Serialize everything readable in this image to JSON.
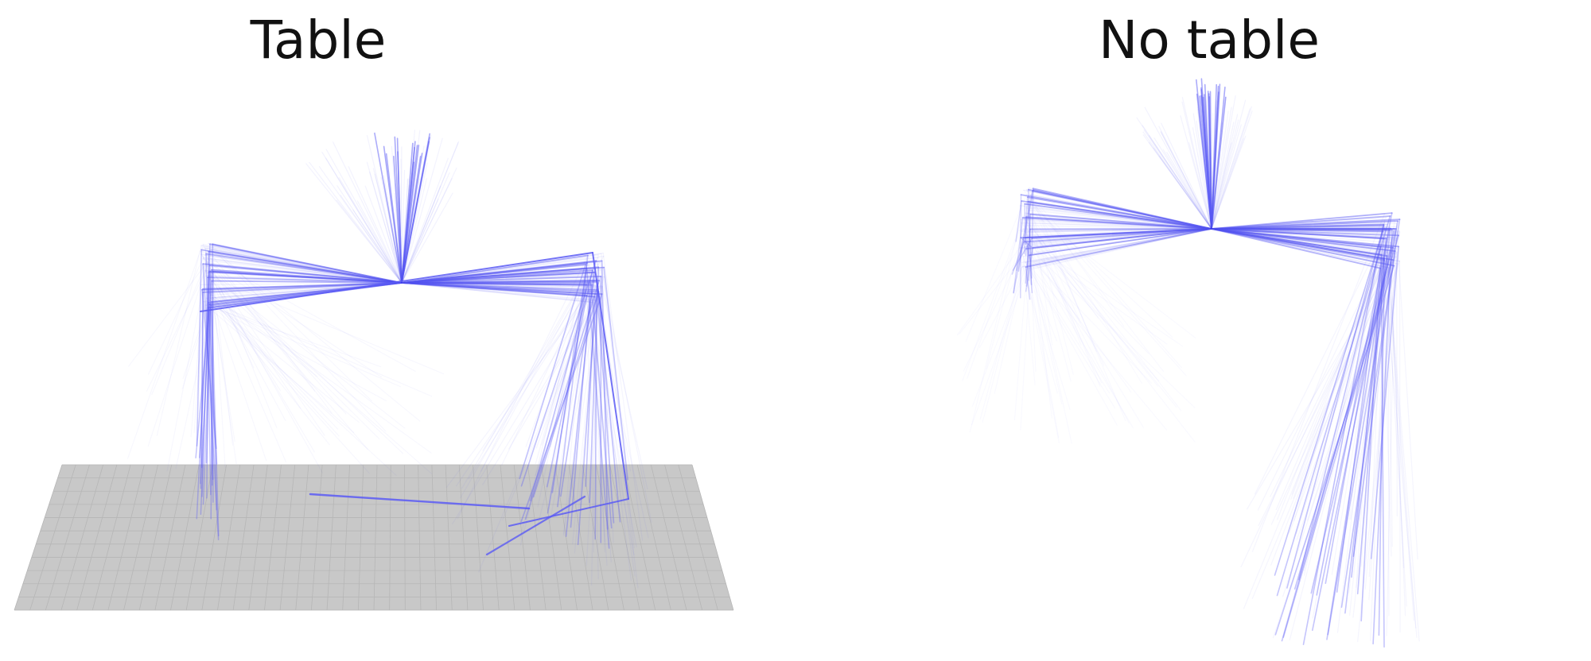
{
  "panels": [
    {
      "title": "Table"
    },
    {
      "title": "No table"
    }
  ],
  "colors": {
    "trajectory": "#5a5af5",
    "table": "#c8c8c8",
    "table_grid": "#b6b6b6"
  }
}
